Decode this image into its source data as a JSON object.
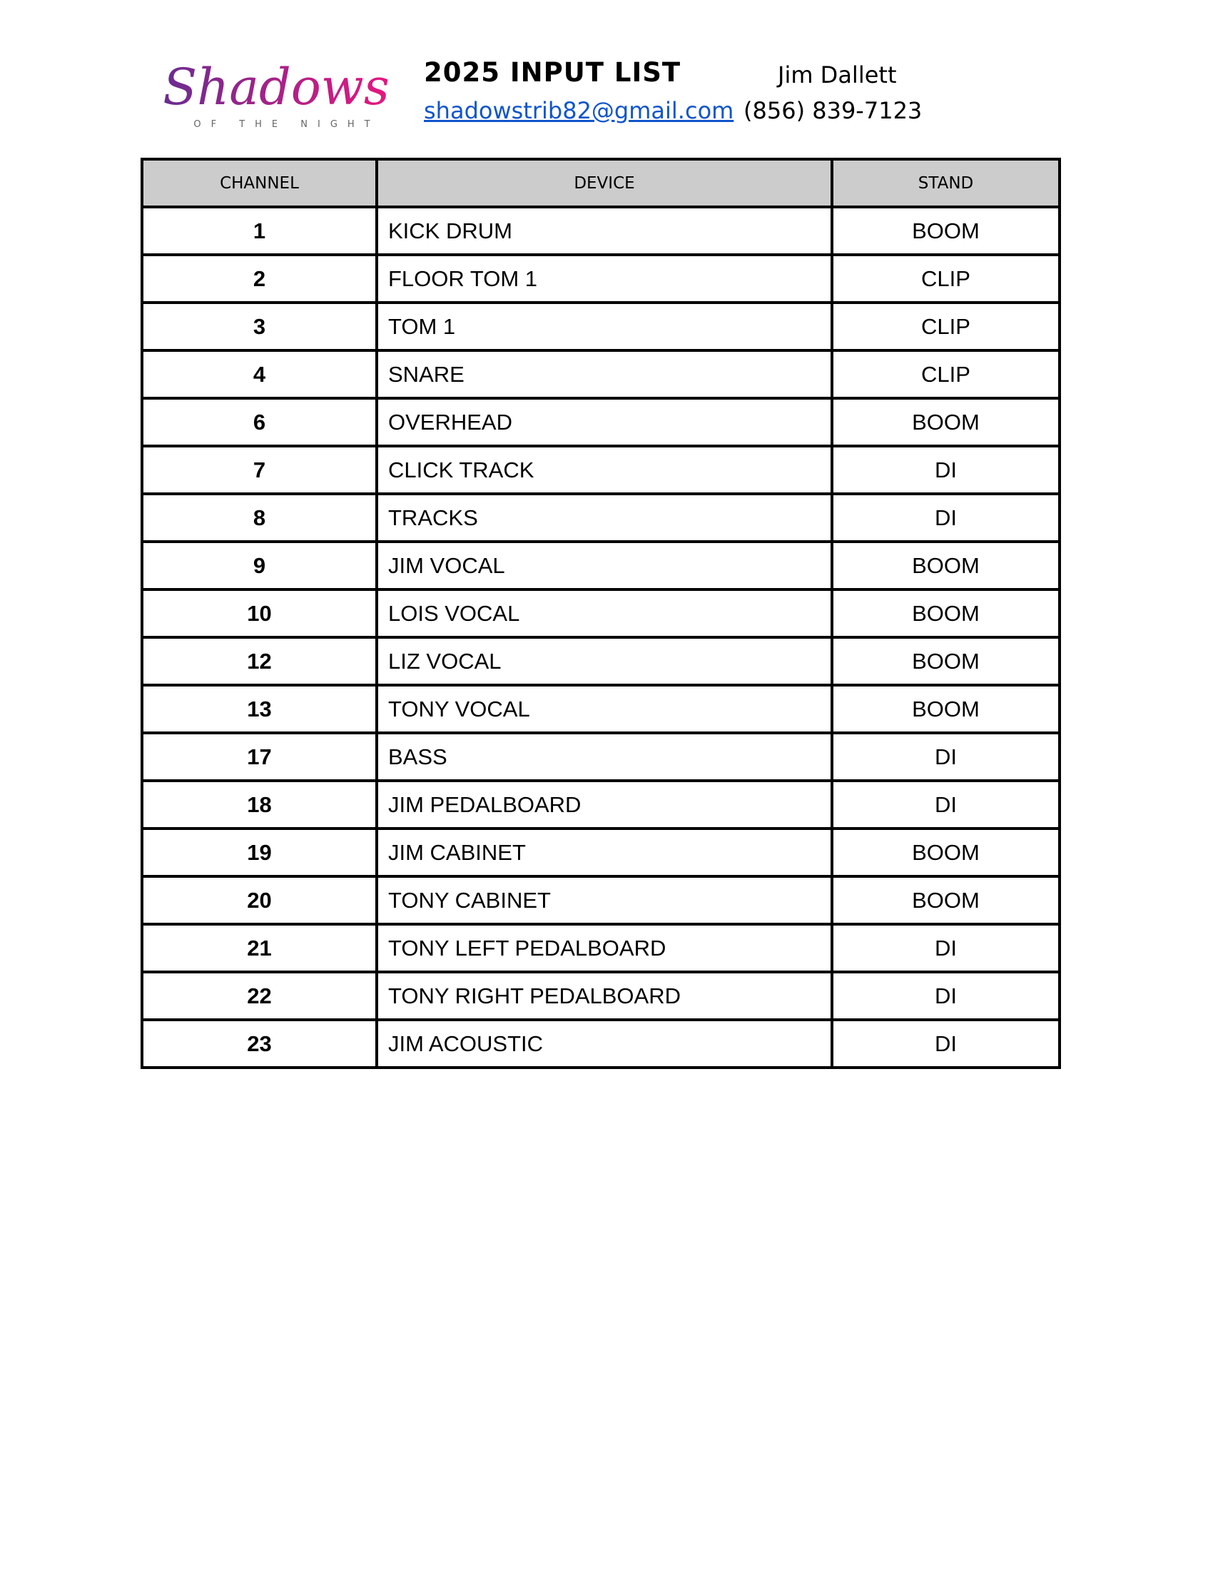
{
  "header": {
    "logo_text": "Shadows",
    "logo_subtext": "OF THE NIGHT",
    "title": "2025 INPUT LIST",
    "contact_name": "Jim Dallett",
    "email": "shadowstrib82@gmail.com",
    "phone": "(856) 839-7123",
    "link_color": "#1155cc"
  },
  "table": {
    "columns": [
      "CHANNEL",
      "DEVICE",
      "STAND"
    ],
    "header_bg": "#cccccc",
    "rows": [
      [
        "1",
        "KICK DRUM",
        "BOOM"
      ],
      [
        "2",
        "FLOOR TOM 1",
        "CLIP"
      ],
      [
        "3",
        "TOM 1",
        "CLIP"
      ],
      [
        "4",
        "SNARE",
        "CLIP"
      ],
      [
        "6",
        "OVERHEAD",
        "BOOM"
      ],
      [
        "7",
        "CLICK TRACK",
        "DI"
      ],
      [
        "8",
        "TRACKS",
        "DI"
      ],
      [
        "9",
        "JIM VOCAL",
        "BOOM"
      ],
      [
        "10",
        "LOIS VOCAL",
        "BOOM"
      ],
      [
        "12",
        "LIZ VOCAL",
        "BOOM"
      ],
      [
        "13",
        "TONY VOCAL",
        "BOOM"
      ],
      [
        "17",
        "BASS",
        "DI"
      ],
      [
        "18",
        "JIM PEDALBOARD",
        "DI"
      ],
      [
        "19",
        "JIM CABINET",
        "BOOM"
      ],
      [
        "20",
        "TONY CABINET",
        "BOOM"
      ],
      [
        "21",
        "TONY LEFT PEDALBOARD",
        "DI"
      ],
      [
        "22",
        "TONY RIGHT PEDALBOARD",
        "DI"
      ],
      [
        "23",
        "JIM ACOUSTIC",
        "DI"
      ]
    ]
  }
}
